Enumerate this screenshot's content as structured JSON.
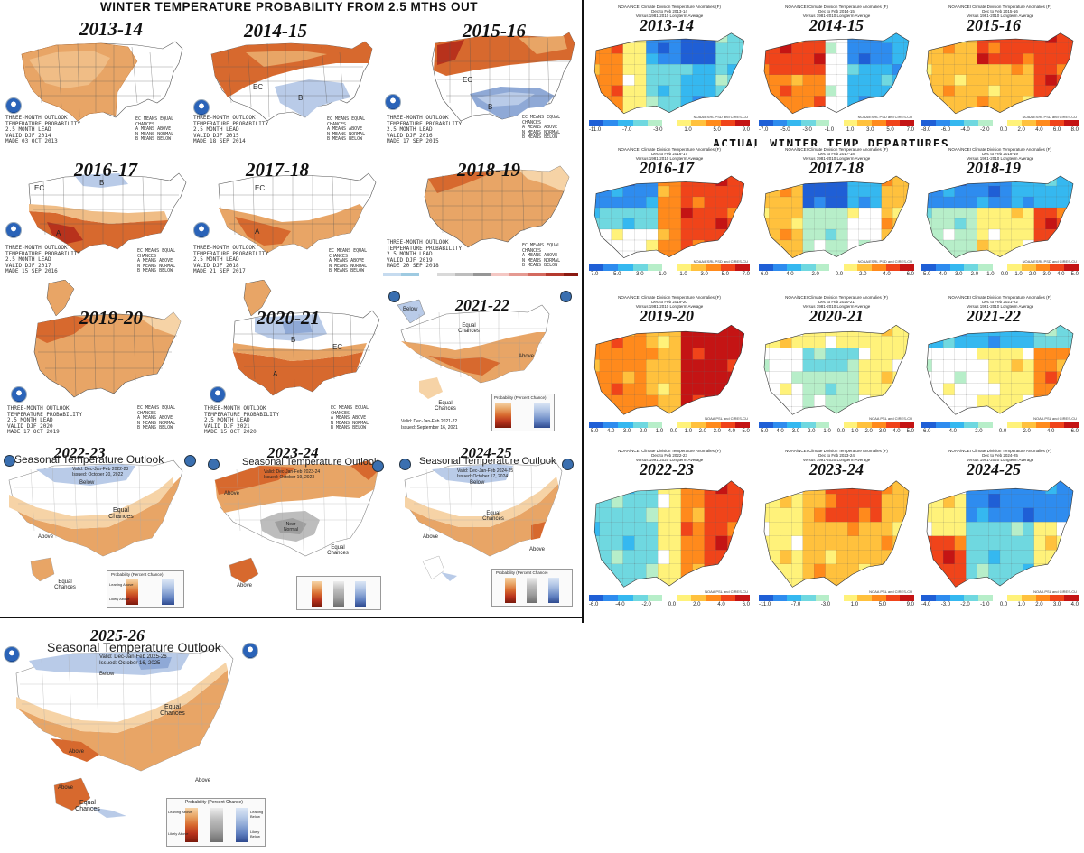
{
  "titles": {
    "main": "WINTER TEMPERATURE PROBABILITY FROM 2.5 MTHS OUT",
    "actual": "ACTUAL   WINTER   TEMP  DEPARTURES"
  },
  "labels": {
    "above": "Above",
    "below": "Below",
    "equal_chances": "Equal Chances",
    "near_normal": "Near Normal",
    "A": "A",
    "B": "B",
    "EC": "EC",
    "seasonal_title": "Seasonal Temperature Outlook",
    "probability_title": "Probability (Percent Chance)",
    "leaning_above": "Leaning Above",
    "likely_above": "Likely Above",
    "leaning_below": "Leaning Below",
    "likely_below": "Likely Below",
    "noaa_credit": "NOAA PSL and CIRES-CU",
    "noaa_esrl_credit": "NOAA/ESRL PSD and CIRES-CU"
  },
  "outlooks": [
    {
      "year": "2013-14",
      "scheme": "A",
      "lines": "THREE-MONTH OUTLOOK\nTEMPERATURE PROBABILITY\n2.5 MONTH LEAD\nVALID DJF 2014\nMADE 03 OCT 2013",
      "legend": "EC MEANS EQUAL\nCHANCES\nA MEANS ABOVE\nN MEANS NORMAL\nB MEANS BELOW"
    },
    {
      "year": "2014-15",
      "scheme": "B",
      "lines": "THREE-MONTH OUTLOOK\nTEMPERATURE PROBABILITY\n2.5 MONTH LEAD\nVALID DJF 2015\nMADE 18 SEP 2014",
      "legend": "EC MEANS EQUAL\nCHANCES\nA MEANS ABOVE\nN MEANS NORMAL\nB MEANS BELOW"
    },
    {
      "year": "2015-16",
      "scheme": "C",
      "lines": "THREE-MONTH OUTLOOK\nTEMPERATURE PROBABILITY\n2.5 MONTH LEAD\nVALID DJF 2016\nMADE 17 SEP 2015",
      "legend": "EC MEANS EQUAL\nCHANCES\nA MEANS ABOVE\nN MEANS NORMAL\nB MEANS BELOW"
    },
    {
      "year": "2016-17",
      "scheme": "D",
      "lines": "THREE-MONTH OUTLOOK\nTEMPERATURE PROBABILITY\n2.5 MONTH LEAD\nVALID DJF 2017\nMADE 15 SEP 2016",
      "legend": "EC MEANS EQUAL\nCHANCES\nA MEANS ABOVE\nN MEANS NORMAL\nB MEANS BELOW"
    },
    {
      "year": "2017-18",
      "scheme": "E",
      "lines": "THREE-MONTH OUTLOOK\nTEMPERATURE PROBABILITY\n2.5 MONTH LEAD\nVALID DJF 2018\nMADE 21 SEP 2017",
      "legend": "EC MEANS EQUAL\nCHANCES\nA MEANS ABOVE\nN MEANS NORMAL\nB MEANS BELOW"
    },
    {
      "year": "2018-19",
      "scheme": "F",
      "lines": "THREE-MONTH OUTLOOK\nTEMPERATURE PROBABILITY\n2.5 MONTH LEAD\nVALID DJF 2019\nMADE 20 SEP 2018",
      "legend": "EC MEANS EQUAL\nCHANCES\nA MEANS ABOVE\nN MEANS NORMAL\nB MEANS BELOW"
    },
    {
      "year": "2019-20",
      "scheme": "G",
      "lines": "THREE-MONTH OUTLOOK\nTEMPERATURE PROBABILITY\n2.5 MONTH LEAD\nVALID DJF 2020\nMADE 17 OCT 2019",
      "legend": "EC MEANS EQUAL\nCHANCES\nA MEANS ABOVE\nN MEANS NORMAL\nB MEANS BELOW"
    },
    {
      "year": "2020-21",
      "scheme": "H",
      "lines": "THREE-MONTH OUTLOOK\nTEMPERATURE PROBABILITY\n2.5 MONTH LEAD\nVALID DJF 2021\nMADE 15 OCT 2020",
      "legend": "EC MEANS EQUAL\nCHANCES\nA MEANS ABOVE\nN MEANS NORMAL\nB MEANS BELOW"
    },
    {
      "year": "2021-22",
      "scheme": "I",
      "valid": "Valid: Dec-Jan-Feb 2021-22",
      "issued": "Issued: September 16, 2021"
    },
    {
      "year": "2022-23",
      "scheme": "J",
      "valid": "Valid: Dec-Jan-Feb 2022-23",
      "issued": "Issued: October 20, 2022"
    },
    {
      "year": "2023-24",
      "scheme": "K",
      "valid": "Valid: Dec-Jan-Feb 2023-24",
      "issued": "Issued: October 19, 2023"
    },
    {
      "year": "2024-25",
      "scheme": "L",
      "valid": "Valid: Dec-Jan-Feb 2024-25",
      "issued": "Issued: October 17, 2024"
    },
    {
      "year": "2025-26",
      "scheme": "M",
      "valid": "Valid: Dec-Jan-Feb 2025-26",
      "issued": "Issued: October 16, 2025"
    }
  ],
  "actuals": [
    {
      "year": "2013-14",
      "header": "NOAA/NCEI Climate Division Temperature Anomalies (F)",
      "period": "Dec to Feb 2013-14",
      "base": "Versus 1981-2010 Longterm Average",
      "ticks": [
        "-11.0",
        "-7.0",
        "-3.0",
        "1.0",
        "5.0",
        "9.0"
      ],
      "scheme": "a1"
    },
    {
      "year": "2014-15",
      "header": "NOAA/NCEI Climate Division Temperature Anomalies (F)",
      "period": "Dec to Feb 2014-15",
      "base": "Versus 1981-2010 Longterm Average",
      "ticks": [
        "-7.0",
        "-5.0",
        "-3.0",
        "-1.0",
        "1.0",
        "3.0",
        "5.0",
        "7.0"
      ],
      "scheme": "a2"
    },
    {
      "year": "2015-16",
      "header": "NOAA/NCEI Climate Division Temperature Anomalies (F)",
      "period": "Dec to Feb 2015-16",
      "base": "Versus 1981-2010 Longterm Average",
      "ticks": [
        "-8.0",
        "-6.0",
        "-4.0",
        "-2.0",
        "0.0",
        "2.0",
        "4.0",
        "6.0",
        "8.0"
      ],
      "scheme": "a3"
    },
    {
      "year": "2016-17",
      "header": "NOAA/NCEI Climate Division Temperature Anomalies (F)",
      "period": "Dec to Feb 2016-17",
      "base": "Versus 1981-2010 Longterm Average",
      "ticks": [
        "-7.0",
        "-5.0",
        "-3.0",
        "-1.0",
        "1.0",
        "3.0",
        "5.0",
        "7.0"
      ],
      "scheme": "a4"
    },
    {
      "year": "2017-18",
      "header": "NOAA/NCEI Climate Division Temperature Anomalies (F)",
      "period": "Dec to Feb 2017-18",
      "base": "Versus 1981-2010 Longterm Average",
      "ticks": [
        "-6.0",
        "-4.0",
        "-2.0",
        "0.0",
        "2.0",
        "4.0",
        "6.0"
      ],
      "scheme": "a5"
    },
    {
      "year": "2018-19",
      "header": "NOAA/NCEI Climate Division Temperature Anomalies (F)",
      "period": "Dec to Feb 2018-19",
      "base": "Versus 1981-2010 Longterm Average",
      "ticks": [
        "-5.0",
        "-4.0",
        "-3.0",
        "-2.0",
        "-1.0",
        "0.0",
        "1.0",
        "2.0",
        "3.0",
        "4.0",
        "5.0"
      ],
      "scheme": "a6"
    },
    {
      "year": "2019-20",
      "header": "NOAA/NCEI Climate Division Temperature Anomalies (F)",
      "period": "Dec to Feb 2019-20",
      "base": "Versus 1981-2010 Longterm Average",
      "ticks": [
        "-5.0",
        "-4.0",
        "-3.0",
        "-2.0",
        "-1.0",
        "0.0",
        "1.0",
        "2.0",
        "3.0",
        "4.0",
        "5.0"
      ],
      "scheme": "a7"
    },
    {
      "year": "2020-21",
      "header": "NOAA/NCEI Climate Division Temperature Anomalies (F)",
      "period": "Dec to Feb 2020-21",
      "base": "Versus 1981-2010 Longterm Average",
      "ticks": [
        "-5.0",
        "-4.0",
        "-3.0",
        "-2.0",
        "-1.0",
        "0.0",
        "1.0",
        "2.0",
        "3.0",
        "4.0",
        "5.0"
      ],
      "scheme": "a8"
    },
    {
      "year": "2021-22",
      "header": "NOAA/NCEI Climate Division Temperature Anomalies (F)",
      "period": "Dec to Feb 2021-22",
      "base": "Versus 1981-2010 Longterm Average",
      "ticks": [
        "-6.0",
        "-4.0",
        "-2.0",
        "0.0",
        "2.0",
        "4.0",
        "6.0"
      ],
      "scheme": "a9"
    },
    {
      "year": "2022-23",
      "header": "NOAA/NCEI Climate Division Temperature Anomalies (F)",
      "period": "Dec to Feb 2022-23",
      "base": "Versus 1991-2020 Longterm Average",
      "ticks": [
        "-6.0",
        "-4.0",
        "-2.0",
        "0.0",
        "2.0",
        "4.0",
        "6.0"
      ],
      "scheme": "a10"
    },
    {
      "year": "2023-24",
      "header": "NOAA/NCEI Climate Division Temperature Anomalies (F)",
      "period": "Dec to Feb 2023-24",
      "base": "Versus 1991-2020 Longterm Average",
      "ticks": [
        "-11.0",
        "-7.0",
        "-3.0",
        "1.0",
        "5.0",
        "9.0"
      ],
      "scheme": "a11"
    },
    {
      "year": "2024-25",
      "header": "NOAA/NCEI Climate Division Temperature Anomalies (F)",
      "period": "Dec to Feb 2024-25",
      "base": "Versus 1991-2020 Longterm Average",
      "ticks": [
        "-4.0",
        "-3.0",
        "-2.0",
        "-1.0",
        "0.0",
        "1.0",
        "2.0",
        "3.0",
        "4.0"
      ],
      "scheme": "a12"
    }
  ],
  "colors": {
    "above_light": "#f6d3a6",
    "above_mid": "#e8a566",
    "above_dark": "#d7692e",
    "above_deep": "#b8321c",
    "below_light": "#b9cbe8",
    "below_mid": "#8fa9d6",
    "normal_gray": "#9e9e9e",
    "anomaly_scale": [
      "#1f5fd6",
      "#2e8cef",
      "#35b8f0",
      "#6fd8e0",
      "#b7eec9",
      "#ffffff",
      "#fff27a",
      "#ffc13d",
      "#ff8a1c",
      "#f0441a",
      "#c41414"
    ]
  }
}
